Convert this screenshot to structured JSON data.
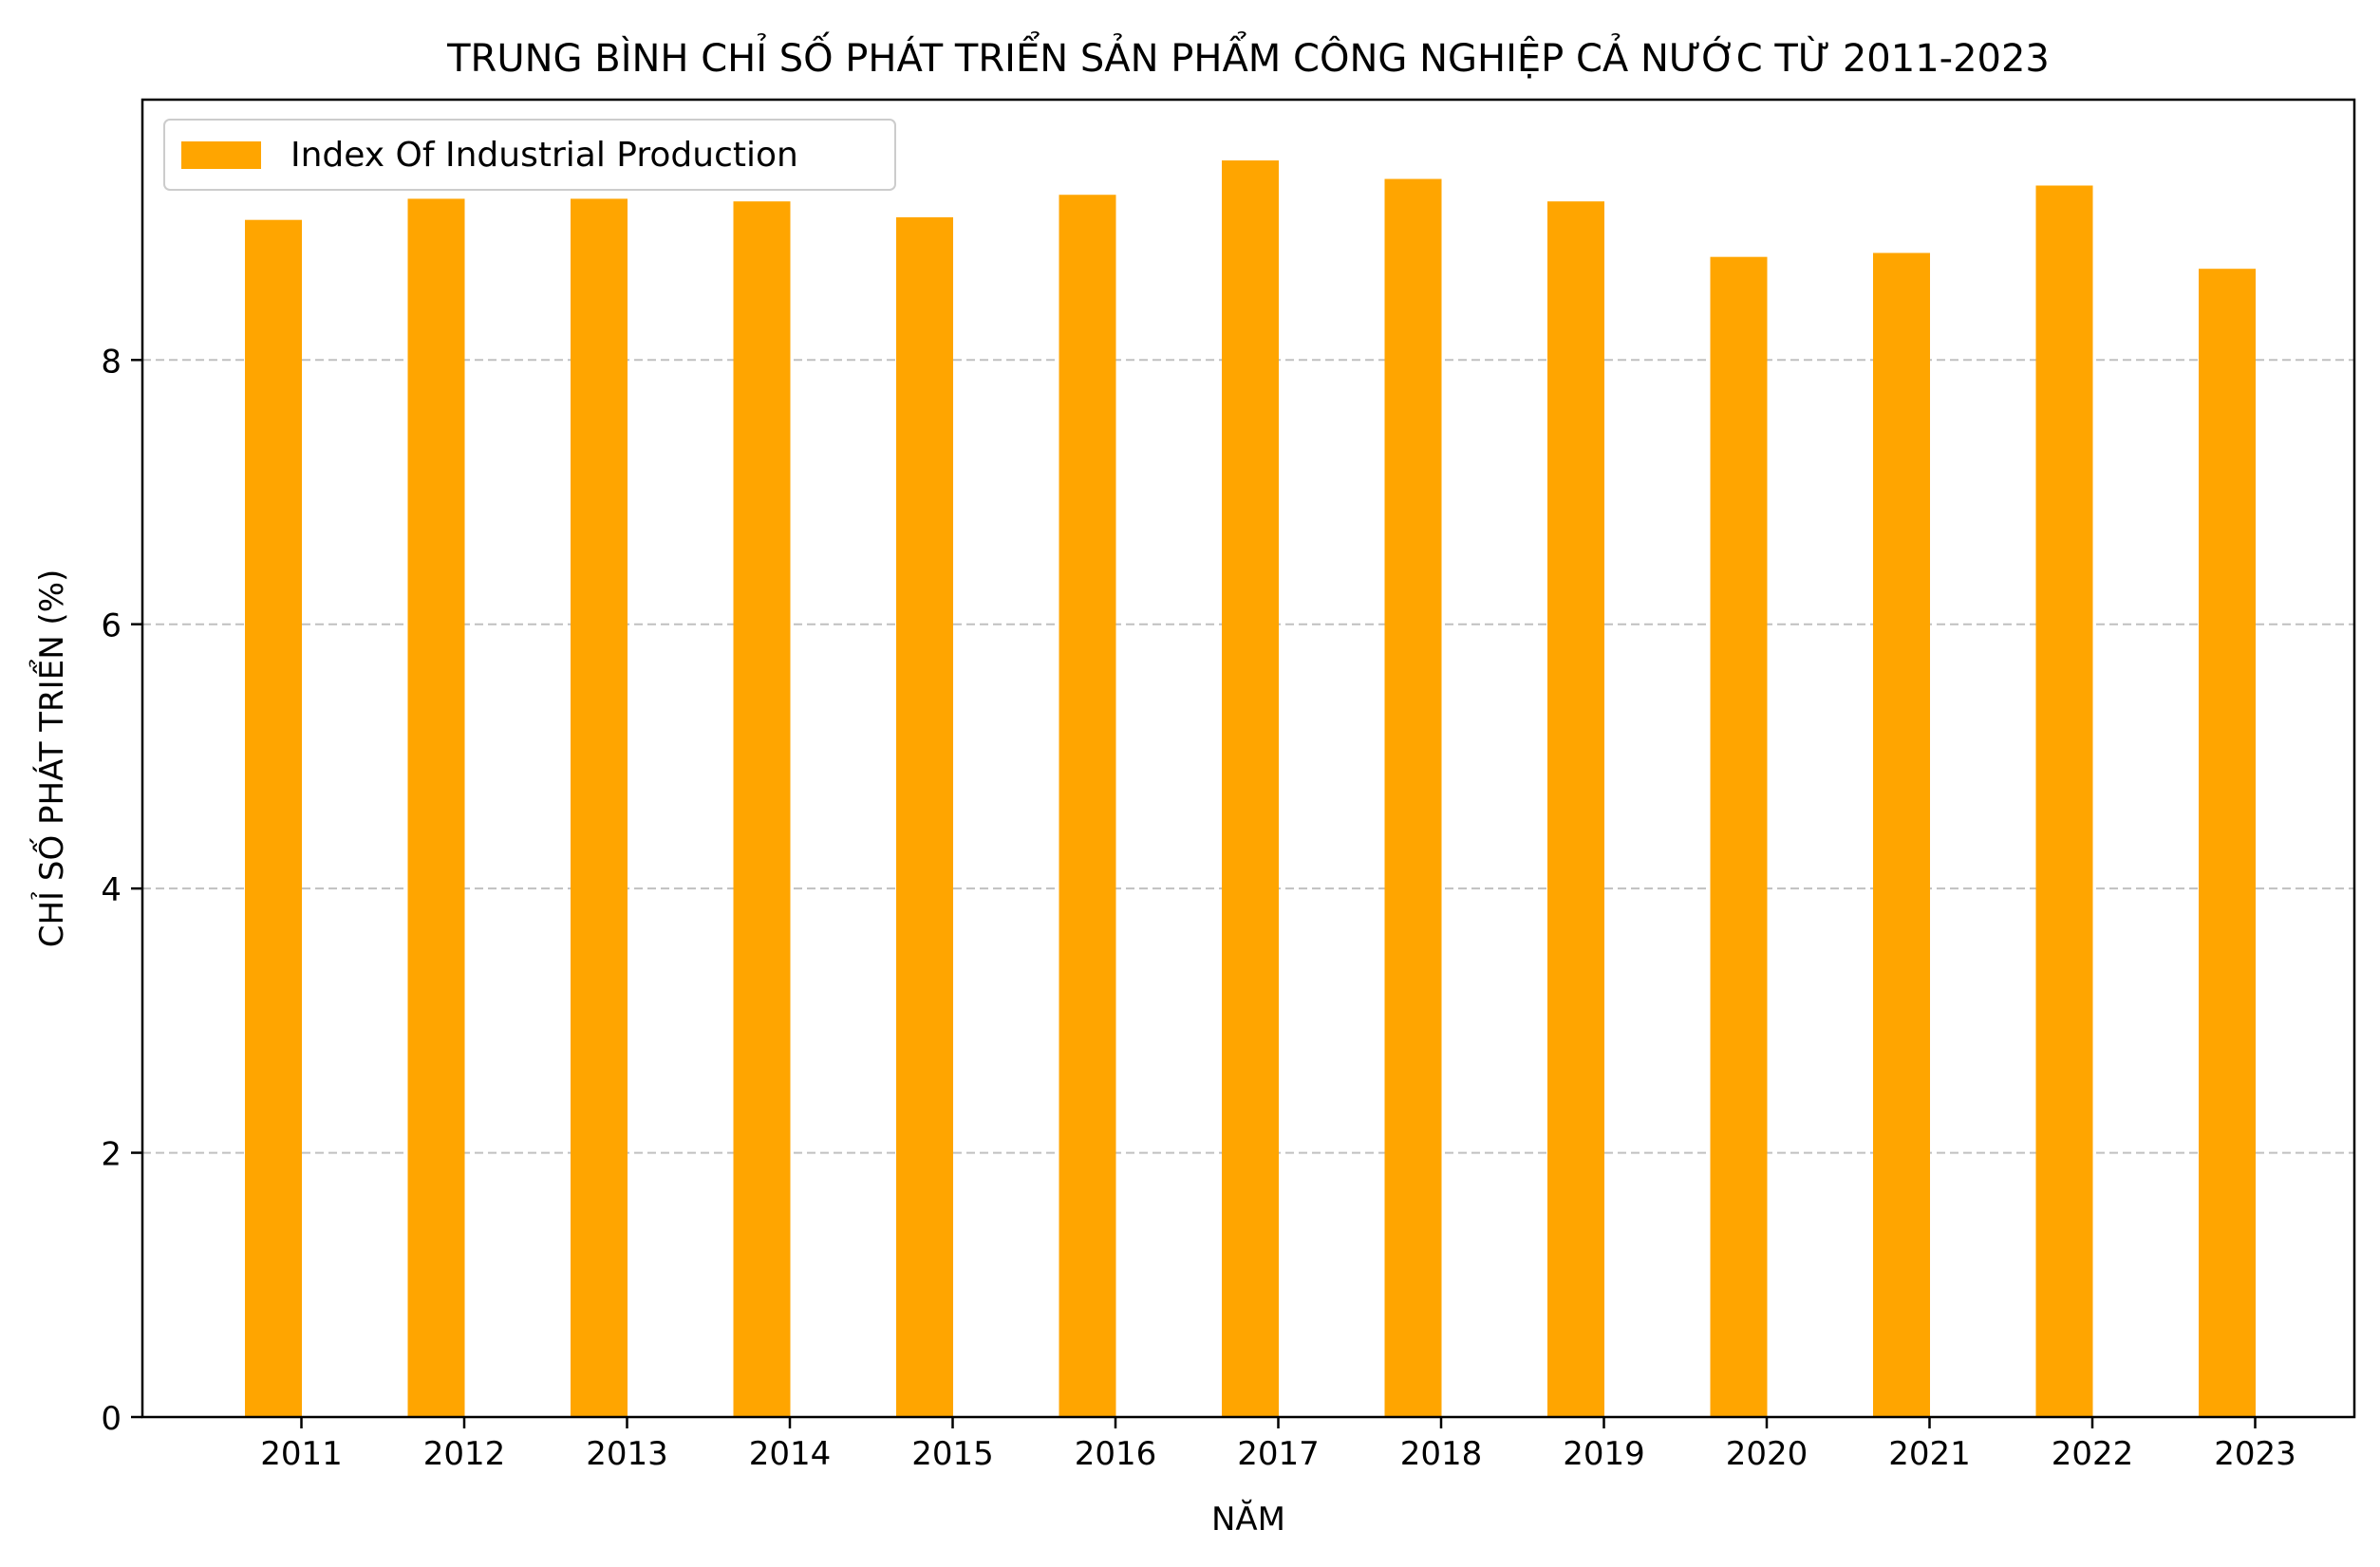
{
  "chart_data": {
    "type": "bar",
    "title": "TRUNG BÌNH CHỈ SỐ PHÁT TRIỂN SẢN PHẨM CÔNG NGHIỆP CẢ NƯỚC TỪ 2011-2023",
    "xlabel": "NĂM",
    "ylabel": "CHỈ SỐ PHÁT TRIỂN (%)",
    "categories": [
      "2011",
      "2012",
      "2013",
      "2014",
      "2015",
      "2016",
      "2017",
      "2018",
      "2019",
      "2020",
      "2021",
      "2022",
      "2023"
    ],
    "series": [
      {
        "name": "Index Of Industrial Production",
        "color": "#FFA500",
        "values": [
          9.06,
          9.22,
          9.22,
          9.2,
          9.08,
          9.25,
          9.51,
          9.37,
          9.2,
          8.78,
          8.81,
          9.32,
          8.69
        ]
      }
    ],
    "ylim": [
      0,
      9.97
    ],
    "yticks": [
      0,
      2,
      4,
      6,
      8
    ],
    "grid": "y-dashed",
    "legend_position": "top-left"
  }
}
